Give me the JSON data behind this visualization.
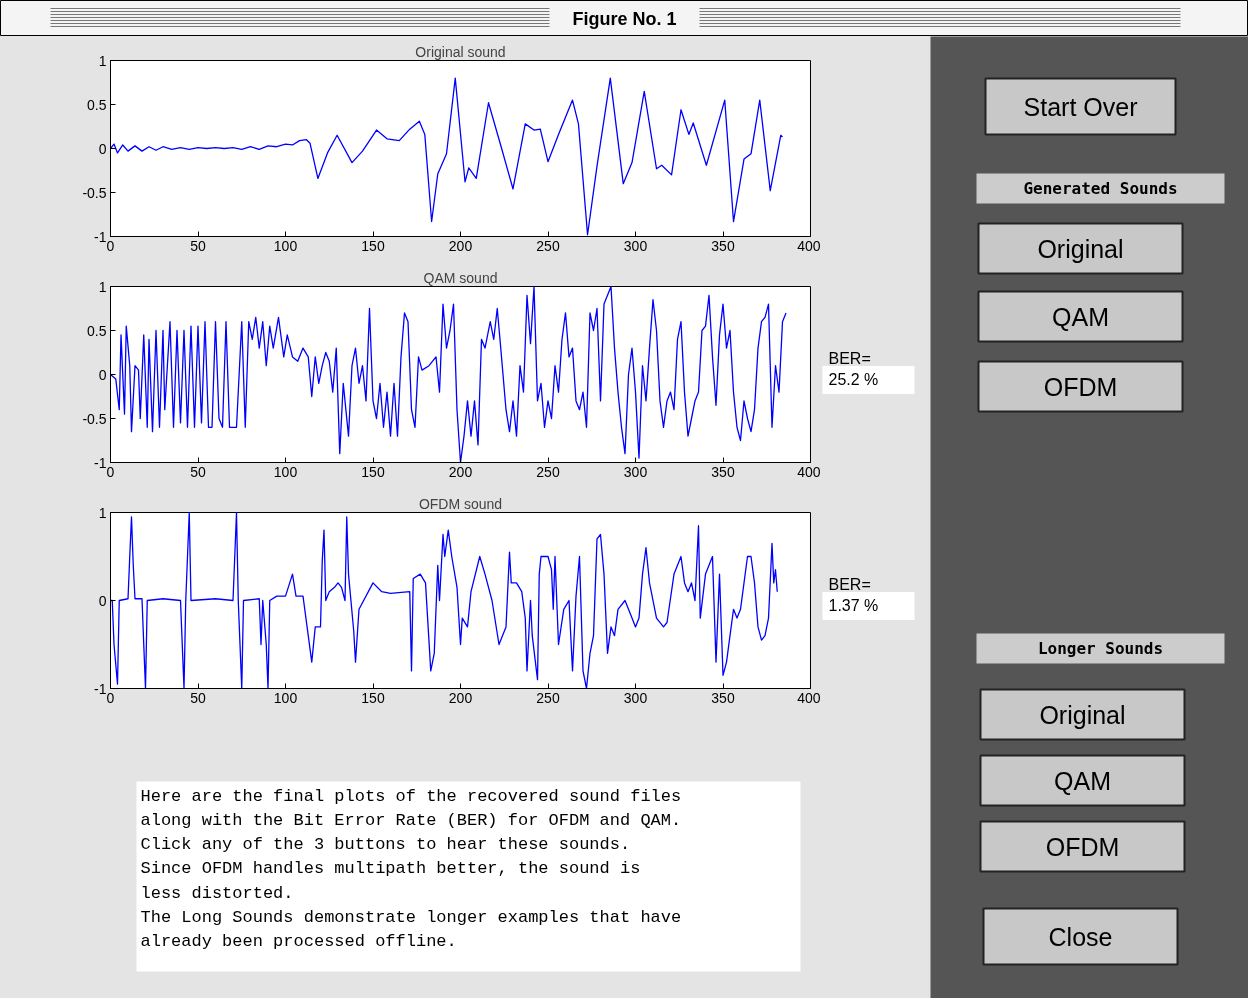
{
  "chart_data": [
    {
      "type": "line",
      "title": "Original sound",
      "xlim": [
        0,
        400
      ],
      "ylim": [
        -1,
        1
      ],
      "xticks": [
        0,
        50,
        100,
        150,
        200,
        250,
        300,
        350,
        400
      ],
      "yticks": [
        -1,
        -0.5,
        0,
        0.5,
        1
      ],
      "grid": false,
      "marker": "none",
      "line_style": "solid",
      "series": [
        {
          "color": "#0000ff",
          "x": [
            0,
            2,
            4,
            7,
            10,
            14,
            18,
            22,
            26,
            30,
            35,
            40,
            45,
            50,
            55,
            60,
            65,
            70,
            75,
            80,
            85,
            90,
            95,
            100,
            104,
            108,
            112,
            114,
            118.5,
            124,
            129.5,
            138,
            144,
            152,
            158,
            165,
            171,
            176.5,
            179.6,
            183.5,
            187,
            192,
            197,
            202.6,
            204.7,
            209,
            216,
            223.5,
            230,
            237,
            242,
            245.6,
            250,
            256,
            264,
            267.4,
            272.6,
            278,
            285.6,
            293,
            298,
            305,
            312,
            315,
            320.6,
            326,
            330.5,
            333,
            340.5,
            351,
            356,
            362,
            366,
            371,
            377,
            383,
            384
          ],
          "values": [
            0,
            0.05,
            -0.05,
            0.04,
            -0.03,
            0.03,
            -0.03,
            0.02,
            -0.02,
            0.02,
            -0.01,
            0.01,
            -0.01,
            0.01,
            0,
            0.01,
            0,
            0.01,
            -0.01,
            0.02,
            -0.01,
            0.03,
            0.02,
            0.05,
            0.04,
            0.09,
            0.1,
            0.06,
            -0.34,
            -0.05,
            0.15,
            -0.16,
            -0.03,
            0.21,
            0.11,
            0.09,
            0.22,
            0.31,
            0.16,
            -0.83,
            -0.29,
            -0.06,
            0.8,
            -0.38,
            -0.22,
            -0.34,
            0.52,
            0,
            -0.46,
            0.28,
            0.21,
            0.22,
            -0.15,
            0.16,
            0.55,
            0.28,
            -0.98,
            -0.2,
            0.8,
            -0.4,
            -0.16,
            0.65,
            -0.23,
            -0.19,
            -0.3,
            0.44,
            0.16,
            0.29,
            -0.19,
            0.55,
            -0.83,
            -0.12,
            -0.06,
            0.55,
            -0.48,
            0.15,
            0.13
          ]
        }
      ]
    },
    {
      "type": "line",
      "title": "QAM sound",
      "xlim": [
        0,
        400
      ],
      "ylim": [
        -1,
        1
      ],
      "xticks": [
        0,
        50,
        100,
        150,
        200,
        250,
        300,
        350,
        400
      ],
      "yticks": [
        -1,
        -0.5,
        0,
        0.5,
        1
      ],
      "grid": false,
      "marker": "none",
      "line_style": "solid",
      "annotations": [
        "BER=",
        "25.2 %"
      ],
      "series": [
        {
          "color": "#0000ff",
          "x": [
            0,
            3,
            5,
            6,
            8,
            9,
            11,
            12,
            14,
            16,
            17,
            19,
            21,
            22,
            24,
            26,
            28,
            30,
            31,
            34,
            36,
            38,
            40,
            42,
            44,
            46,
            48,
            50,
            52,
            54,
            56,
            58,
            60,
            62,
            64,
            66,
            68,
            72,
            75,
            77,
            79,
            81,
            83,
            85,
            87,
            89,
            91,
            93,
            96,
            99,
            101,
            104,
            107,
            110,
            113,
            115,
            117,
            119,
            121,
            123,
            125,
            127,
            129,
            131,
            133,
            136,
            138,
            140,
            142,
            144,
            146,
            148,
            150,
            152,
            154,
            156,
            158,
            160,
            162,
            164,
            166,
            168,
            170,
            172,
            174,
            176,
            178,
            182,
            186,
            188,
            190,
            192,
            194,
            196,
            198,
            200,
            202,
            204,
            206,
            208,
            210,
            212,
            214,
            217,
            219,
            221,
            223,
            226,
            228,
            230,
            232,
            234,
            236,
            238,
            240,
            242,
            244,
            246,
            248,
            250,
            252,
            254,
            256,
            258,
            260,
            262,
            264,
            266,
            268,
            270,
            272,
            274,
            276,
            278,
            280,
            282,
            284,
            286,
            288,
            290,
            292,
            294,
            296,
            298,
            300,
            302,
            304,
            306,
            308,
            310,
            312,
            314,
            316,
            318,
            320,
            322,
            324,
            326,
            328,
            330,
            332,
            334,
            336,
            338,
            340,
            342,
            344,
            346,
            348,
            350,
            352,
            354,
            356,
            358,
            360,
            362,
            364,
            366,
            368,
            370,
            372,
            374,
            376,
            378,
            380,
            382,
            384,
            386
          ],
          "values": [
            0,
            -0.05,
            -0.4,
            0.45,
            -0.45,
            0.55,
            0.1,
            -0.65,
            0.1,
            0.05,
            -0.5,
            0.45,
            -0.6,
            0.4,
            -0.65,
            0.5,
            -0.6,
            0.5,
            -0.4,
            0.6,
            -0.6,
            0.5,
            -0.55,
            0.5,
            -0.6,
            0.55,
            -0.6,
            0.55,
            -0.55,
            0.6,
            -0.6,
            -0.6,
            0.6,
            -0.5,
            -0.6,
            0.6,
            -0.6,
            -0.6,
            0.6,
            -0.6,
            0.6,
            0.4,
            0.65,
            0.3,
            0.6,
            0.1,
            0.55,
            0.3,
            0.65,
            0.2,
            0.45,
            0.2,
            0.15,
            0.3,
            0.2,
            -0.25,
            0.2,
            -0.1,
            0.1,
            0.25,
            0.15,
            -0.2,
            0.3,
            -0.9,
            -0.1,
            -0.7,
            0.1,
            0.3,
            -0.1,
            0.1,
            -0.3,
            0.75,
            -0.3,
            -0.5,
            -0.1,
            -0.6,
            -0.2,
            -0.7,
            -0.1,
            -0.7,
            0.2,
            0.7,
            0.6,
            -0.4,
            -0.6,
            0.2,
            0.05,
            0.1,
            0.2,
            -0.2,
            0.8,
            0.3,
            0.5,
            0.8,
            -0.4,
            -1.0,
            -0.7,
            -0.3,
            -0.7,
            -0.3,
            -0.8,
            0.4,
            0.3,
            0.6,
            0.4,
            0.75,
            0.3,
            -0.4,
            -0.65,
            -0.3,
            -0.7,
            0.1,
            -0.2,
            0.9,
            0.35,
            1.0,
            -0.3,
            -0.1,
            -0.6,
            -0.3,
            -0.5,
            0.1,
            -0.2,
            0.4,
            0.7,
            0.2,
            0.3,
            -0.3,
            -0.4,
            -0.2,
            -0.6,
            0.7,
            0.5,
            0.75,
            -0.3,
            0.8,
            0.9,
            1.0,
            0.3,
            -0.2,
            -0.6,
            -0.9,
            0.0,
            0.3,
            -0.2,
            -0.95,
            0.1,
            -0.3,
            0.3,
            0.85,
            0.5,
            -0.3,
            -0.6,
            -0.3,
            -0.2,
            -0.4,
            0.4,
            0.6,
            -0.2,
            -0.7,
            -0.5,
            -0.3,
            -0.2,
            0.5,
            0.55,
            0.9,
            0.2,
            -0.35,
            0.45,
            0.8,
            0.3,
            0.5,
            -0.2,
            -0.6,
            -0.75,
            -0.3,
            -0.5,
            -0.65,
            -0.4,
            0.3,
            0.6,
            0.65,
            0.8,
            -0.6,
            0.1,
            -0.2,
            0.6,
            0.7
          ]
        }
      ]
    },
    {
      "type": "line",
      "title": "OFDM sound",
      "xlim": [
        0,
        400
      ],
      "ylim": [
        -1,
        1
      ],
      "xticks": [
        0,
        50,
        100,
        150,
        200,
        250,
        300,
        350,
        400
      ],
      "yticks": [
        -1,
        0,
        1
      ],
      "grid": false,
      "marker": "none",
      "line_style": "solid",
      "annotations": [
        "BER=",
        "1.37 %"
      ],
      "series": [
        {
          "color": "#0000ff",
          "x": [
            0,
            1,
            2,
            4,
            5,
            10,
            11,
            12,
            13,
            14,
            18,
            19,
            20,
            21,
            30,
            40,
            41,
            42,
            43,
            44,
            45,
            46,
            60,
            70,
            71,
            72,
            73,
            74,
            75,
            76,
            85,
            86,
            87,
            89,
            90,
            91,
            95,
            100,
            104,
            106,
            110,
            113,
            115,
            117,
            120,
            121,
            122,
            123,
            125,
            128,
            130,
            132,
            134,
            135,
            136,
            139,
            140,
            142,
            150,
            155,
            160,
            171,
            172,
            173,
            177,
            180,
            183,
            185,
            187,
            188,
            190,
            191,
            193,
            195,
            198,
            200,
            201,
            204,
            206,
            211,
            214,
            218,
            222,
            226,
            228,
            229,
            232,
            235,
            237,
            238,
            240,
            241,
            244,
            245,
            246,
            248,
            250,
            252,
            253,
            254,
            256,
            259,
            262,
            264,
            266,
            268,
            270,
            272,
            274,
            276,
            278,
            280,
            282,
            284,
            286,
            288,
            290,
            294,
            298,
            300,
            302,
            304,
            306,
            308,
            312,
            316,
            318,
            322,
            326,
            328,
            330,
            332,
            334,
            336,
            337,
            340,
            344,
            346,
            348,
            350,
            352,
            354,
            356,
            358,
            360,
            364,
            366,
            368,
            370,
            372,
            374,
            376,
            378,
            379,
            380,
            381
          ],
          "values": [
            0,
            0,
            -0.5,
            -0.95,
            0,
            0.02,
            0.5,
            0.95,
            0.4,
            0.02,
            0.02,
            -0.5,
            -1,
            0,
            0.02,
            0,
            -0.5,
            -1,
            0,
            0.5,
            1,
            0,
            0.02,
            0,
            0.5,
            1,
            0,
            -0.5,
            -1,
            0,
            0.02,
            -0.5,
            0,
            -0.5,
            -1,
            0,
            0.05,
            0.05,
            0.3,
            0.05,
            0.05,
            -0.4,
            -0.7,
            -0.3,
            -0.3,
            0.45,
            0.8,
            0,
            0.1,
            0.15,
            0.2,
            0.15,
            0,
            0.95,
            0.3,
            -0.35,
            -0.7,
            -0.1,
            0.2,
            0.1,
            0.08,
            0.1,
            -0.8,
            0.25,
            0.3,
            0.2,
            -0.8,
            -0.6,
            0.4,
            0,
            0.75,
            0.5,
            0.8,
            0.5,
            0.15,
            -0.5,
            -0.2,
            -0.3,
            0.1,
            0.5,
            0.3,
            0,
            -0.5,
            -0.3,
            0.55,
            0.2,
            0.2,
            0.1,
            -0.2,
            -0.8,
            0,
            -0.4,
            -0.9,
            0.3,
            0.5,
            0.5,
            0.5,
            0.35,
            -0.1,
            0.5,
            -0.5,
            -0.1,
            0,
            -0.8,
            0.05,
            0.5,
            -0.8,
            -1.0,
            -0.6,
            -0.4,
            0.7,
            0.75,
            0.3,
            -0.6,
            -0.3,
            -0.4,
            -0.1,
            0,
            -0.2,
            -0.3,
            -0.2,
            0.3,
            0.6,
            0.2,
            -0.2,
            -0.3,
            -0.25,
            0.3,
            0.5,
            0.2,
            0.1,
            0.2,
            0,
            0.85,
            -0.2,
            0.3,
            0.5,
            -0.7,
            0.3,
            -0.85,
            -0.7,
            -0.4,
            -0.1,
            -0.2,
            -0.1,
            0.5,
            0.5,
            0.2,
            -0.3,
            -0.45,
            -0.4,
            -0.2,
            0.65,
            0.2,
            0.35,
            0.1
          ]
        }
      ]
    },
    {
      "type": "other",
      "title": "Figure No. 1",
      "annotations": [
        "Start Over",
        "Generated Sounds",
        "Original",
        "QAM",
        "OFDM",
        "Longer Sounds",
        "Original",
        "QAM",
        "OFDM",
        "Close",
        "Here are the final plots of the recovered sound files\nalong with the Bit Error Rate (BER) for OFDM and QAM.\nClick any of the 3 buttons to hear these sounds.\nSince OFDM handles multipath better, the sound is\nless distorted.\nThe Long Sounds demonstrate longer examples that have\nalready been processed offline."
      ]
    }
  ]
}
